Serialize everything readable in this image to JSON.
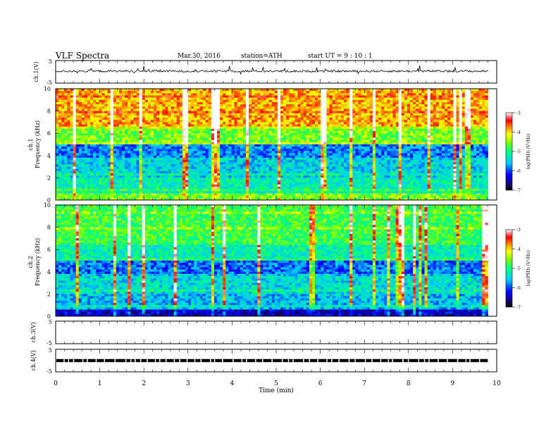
{
  "header": {
    "title": "VLF  Spectra",
    "date": "Mar.30, 2016",
    "station": "station=ATH",
    "start": "start  UT  =    9  : 10 : 1"
  },
  "chart_data": [
    {
      "type": "line",
      "panel": "ch1-waveform",
      "ylabel": "ch.1(V)",
      "ylim": [
        -5,
        5
      ],
      "yticks": [
        "5",
        "-5"
      ],
      "series": [
        {
          "values": [
            0.4,
            0.3,
            -0.2,
            0.5,
            0.1,
            -0.3,
            0.6,
            0.2,
            -0.4,
            0.3,
            0.0,
            0.5,
            -0.1,
            0.2,
            0.4,
            -0.3,
            0.1,
            0.6,
            -0.2,
            0.3
          ]
        }
      ]
    },
    {
      "type": "heatmap",
      "panel": "ch1-spectrogram",
      "ylabel_line1": "ch.1",
      "ylabel_line2": "Frequency  (kHz)",
      "ylim": [
        0,
        10
      ],
      "yticks": [
        "0",
        "2",
        "4",
        "6",
        "8",
        "10"
      ],
      "colorbar": {
        "label": "log(PSD) (V²/Hz)",
        "range": [
          -7,
          -3
        ],
        "ticks": [
          "-3",
          "-4",
          "-5",
          "-6",
          "-7"
        ]
      }
    },
    {
      "type": "heatmap",
      "panel": "ch2-spectrogram",
      "ylabel_line1": "ch.2",
      "ylabel_line2": "Frequency  (kHz)",
      "ylim": [
        0,
        10
      ],
      "yticks": [
        "0",
        "2",
        "4",
        "6",
        "8",
        "10"
      ],
      "colorbar": {
        "label": "log(PSD) (V²/Hz)",
        "range": [
          -7,
          -3
        ],
        "ticks": [
          "-3",
          "-4",
          "-5",
          "-6",
          "-7"
        ]
      }
    },
    {
      "type": "line",
      "panel": "ch3-waveform",
      "ylabel": "ch.3(V)",
      "ylim": [
        -5,
        5
      ],
      "yticks": [
        "5",
        "-5"
      ]
    },
    {
      "type": "line",
      "panel": "ch4-waveform",
      "ylabel": "ch.4(V)",
      "ylim": [
        -5,
        5
      ],
      "yticks": [
        "5",
        "-5"
      ],
      "series": [
        {
          "values": [
            0.0
          ]
        }
      ]
    }
  ],
  "xaxis": {
    "label": "Time  (min)",
    "xlim": [
      0,
      10
    ],
    "ticks": [
      "0",
      "1",
      "2",
      "3",
      "4",
      "5",
      "6",
      "7",
      "8",
      "9",
      "10"
    ],
    "data_end": 9.8
  }
}
